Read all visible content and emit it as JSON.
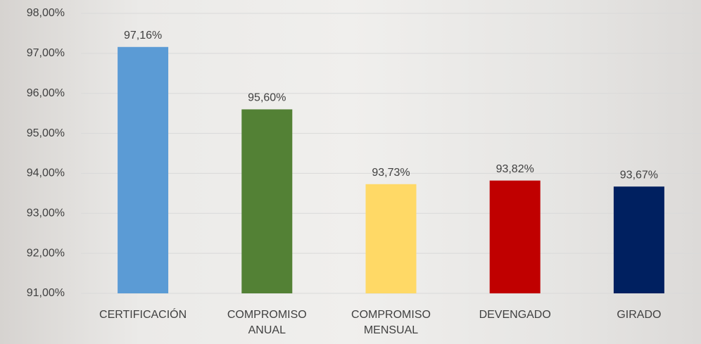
{
  "chart_data": {
    "type": "bar",
    "categories": [
      "CERTIFICACIÓN",
      "COMPROMISO ANUAL",
      "COMPROMISO MENSUAL",
      "DEVENGADO",
      "GIRADO"
    ],
    "values": [
      97.16,
      95.6,
      93.73,
      93.82,
      93.67
    ],
    "value_labels": [
      "97,16%",
      "95,60%",
      "93,73%",
      "93,82%",
      "93,67%"
    ],
    "colors": [
      "#5b9bd5",
      "#538135",
      "#ffd966",
      "#c00000",
      "#002060"
    ],
    "ylim": [
      91,
      98
    ],
    "yticks": [
      {
        "value": 91,
        "label": "91,00%"
      },
      {
        "value": 92,
        "label": "92,00%"
      },
      {
        "value": 93,
        "label": "93,00%"
      },
      {
        "value": 94,
        "label": "94,00%"
      },
      {
        "value": 95,
        "label": "95,00%"
      },
      {
        "value": 96,
        "label": "96,00%"
      },
      {
        "value": 97,
        "label": "97,00%"
      },
      {
        "value": 98,
        "label": "98,00%"
      }
    ],
    "grid": true
  }
}
